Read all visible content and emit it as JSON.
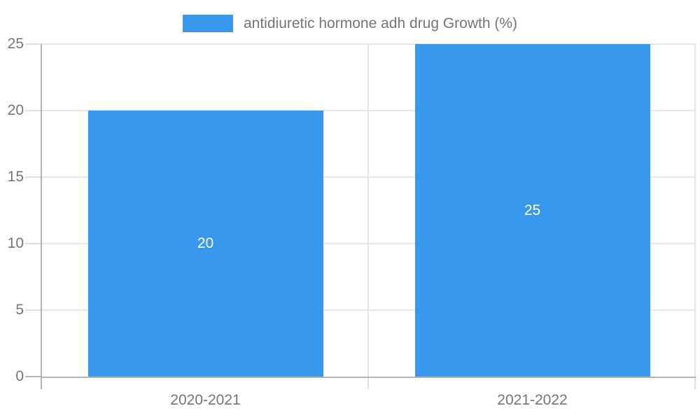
{
  "chart_data": {
    "type": "bar",
    "categories": [
      "2020-2021",
      "2021-2022"
    ],
    "series": [
      {
        "name": "antidiuretic hormone adh drug Growth (%)",
        "values": [
          20,
          25
        ]
      }
    ],
    "value_labels": [
      "20",
      "25"
    ],
    "value_labels_position": "inside-center",
    "ylim": [
      0,
      25
    ],
    "yticks": [
      0,
      5,
      10,
      15,
      20,
      25
    ],
    "grid": true,
    "legend_position": "top-center",
    "colors": {
      "bar": "#3899ec",
      "axis": "#b3b3b3",
      "grid": "#e6e6e6",
      "tick": "#e0e0e0",
      "axis_label": "#757575",
      "value_label": "#ffffff",
      "background": "#ffffff"
    }
  }
}
